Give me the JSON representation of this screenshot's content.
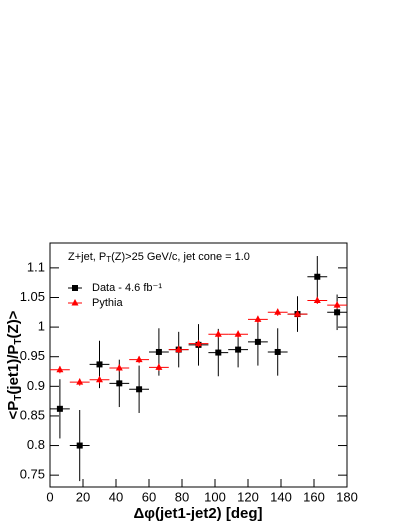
{
  "chart_data": {
    "type": "errorbar",
    "annotation": [
      "Z+jet, P",
      "T",
      "(Z)>25 GeV/c, jet cone = 1.0"
    ],
    "x_label": "Δφ(jet1-jet2) [deg]",
    "y_label": [
      "<P",
      "T",
      "(jet1)/P",
      "T",
      "(Z)>"
    ],
    "x": [
      6,
      18,
      30,
      42,
      54,
      66,
      78,
      90,
      102,
      114,
      126,
      138,
      150,
      162,
      174
    ],
    "xerr": 6,
    "series": [
      {
        "name": "Data - 4.6 fb⁻¹",
        "color": "#000000",
        "marker": "square",
        "values": [
          0.862,
          0.8,
          0.937,
          0.905,
          0.895,
          0.958,
          0.962,
          0.97,
          0.957,
          0.962,
          0.975,
          0.958,
          1.022,
          1.085,
          1.025
        ],
        "errors": [
          0.05,
          0.06,
          0.04,
          0.04,
          0.04,
          0.04,
          0.03,
          0.035,
          0.04,
          0.03,
          0.04,
          0.04,
          0.03,
          0.035,
          0.03
        ]
      },
      {
        "name": "Pythia",
        "color": "#ff0000",
        "marker": "triangle",
        "values": [
          0.928,
          0.907,
          0.911,
          0.931,
          0.945,
          0.932,
          0.962,
          0.972,
          0.988,
          0.988,
          1.013,
          1.025,
          1.022,
          1.045,
          1.037
        ],
        "errors": [
          0.006,
          0.006,
          0.006,
          0.006,
          0.006,
          0.006,
          0.006,
          0.006,
          0.006,
          0.006,
          0.006,
          0.006,
          0.006,
          0.006,
          0.006
        ]
      }
    ],
    "xlim": [
      0,
      180
    ],
    "xticks": [
      0,
      20,
      40,
      60,
      80,
      100,
      120,
      140,
      160,
      180
    ],
    "ylim": [
      0.73,
      1.142
    ],
    "yticks": [
      0.75,
      0.8,
      0.85,
      0.9,
      0.95,
      1,
      1.05,
      1.1
    ],
    "legend": "upper left"
  }
}
